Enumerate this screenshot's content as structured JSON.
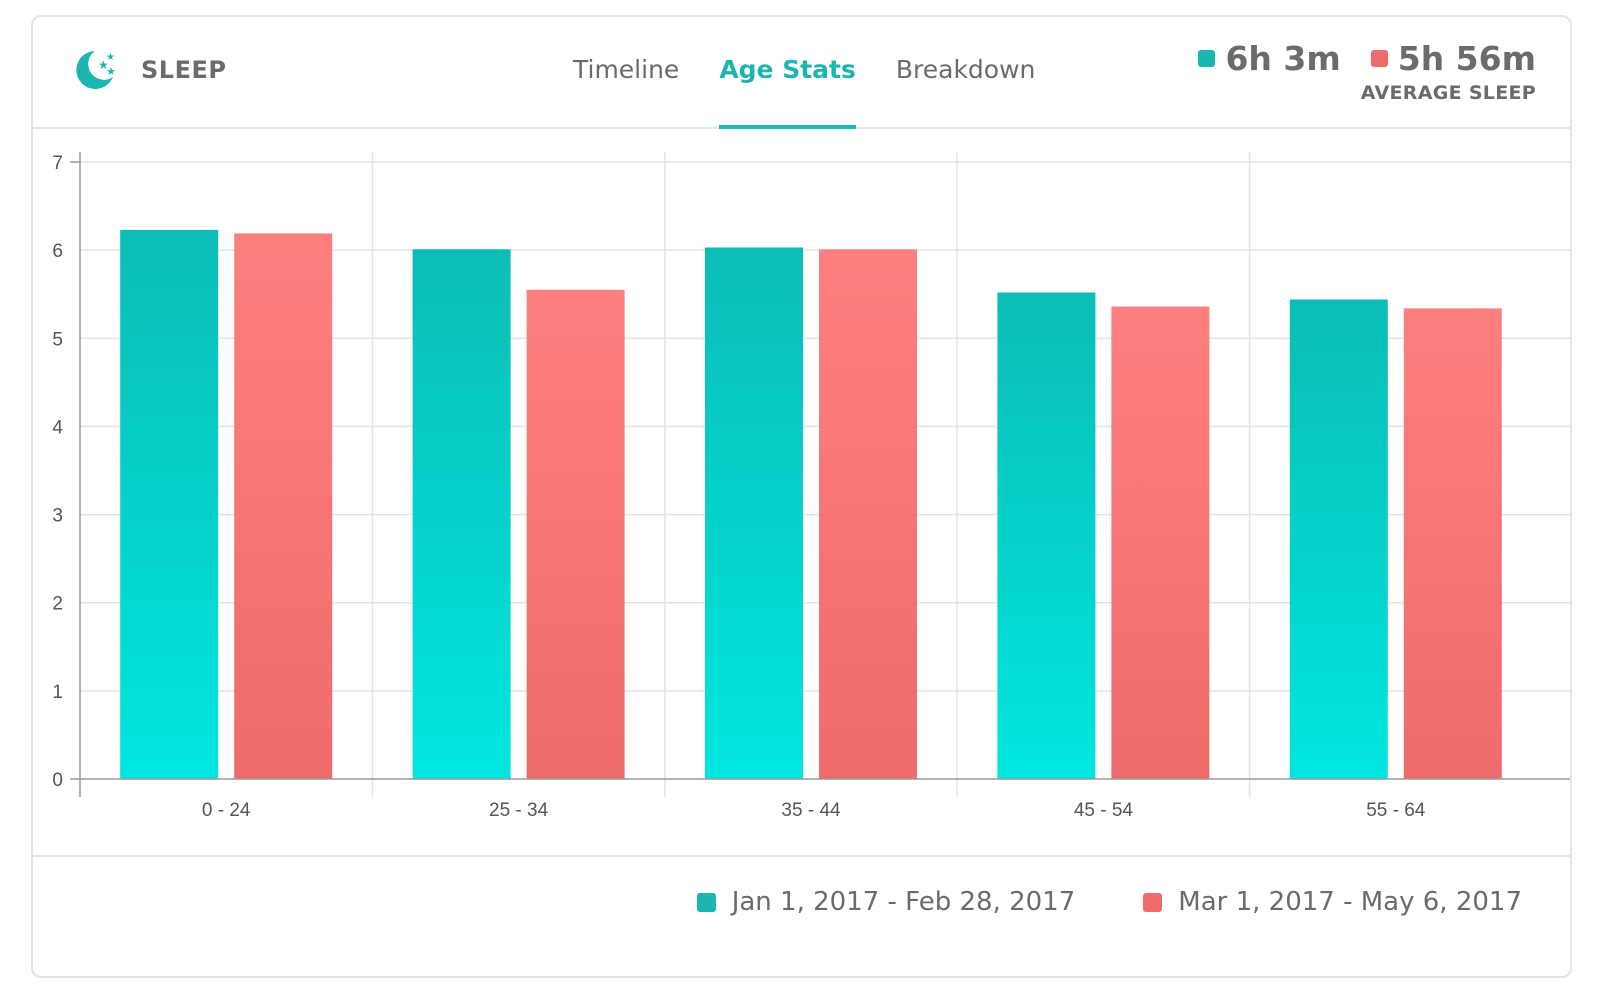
{
  "app": {
    "title": "SLEEP",
    "icon": "moon-stars-icon"
  },
  "tabs": [
    {
      "label": "Timeline",
      "active": false
    },
    {
      "label": "Age Stats",
      "active": true
    },
    {
      "label": "Breakdown",
      "active": false
    }
  ],
  "summary": {
    "values": [
      {
        "value": "6h 3m",
        "color": "#1bb6b2"
      },
      {
        "value": "5h 56m",
        "color": "#f06b6b"
      }
    ],
    "caption": "AVERAGE SLEEP"
  },
  "colors": {
    "accent": "#1bb6b2",
    "series1_top": "#0bbdb6",
    "series1_bottom": "#00e6df",
    "series2_top": "#fe7f7f",
    "series2_bottom": "#f06b6b"
  },
  "chart_data": {
    "type": "bar",
    "title": "",
    "xlabel": "",
    "ylabel": "",
    "ylim": [
      0,
      7
    ],
    "yticks": [
      0,
      1,
      2,
      3,
      4,
      5,
      6,
      7
    ],
    "categories": [
      "0 - 24",
      "25 - 34",
      "35 - 44",
      "45 - 54",
      "55 - 64"
    ],
    "series": [
      {
        "name": "Jan 1, 2017 - Feb 28, 2017",
        "values": [
          6.23,
          6.01,
          6.03,
          5.52,
          5.44
        ]
      },
      {
        "name": "Mar 1, 2017 - May 6, 2017",
        "values": [
          6.19,
          5.55,
          6.01,
          5.36,
          5.34
        ]
      }
    ],
    "grid": true,
    "legend": "bottom-right"
  }
}
